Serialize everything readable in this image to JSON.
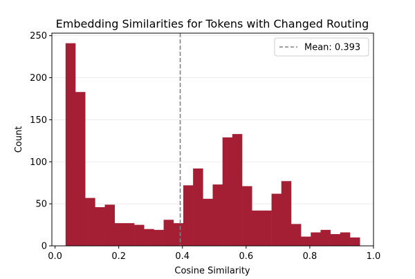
{
  "chart_data": {
    "type": "bar",
    "title": "Embedding Similarities for Tokens with Changed Routing",
    "xlabel": "Cosine Similarity",
    "ylabel": "Count",
    "xlim": [
      -0.01,
      1.0
    ],
    "ylim": [
      0,
      253
    ],
    "x_ticks": [
      0.0,
      0.2,
      0.4,
      0.6,
      0.8,
      1.0
    ],
    "x_tick_labels": [
      "0.0",
      "0.2",
      "0.4",
      "0.6",
      "0.8",
      "1.0"
    ],
    "y_ticks": [
      0,
      50,
      100,
      150,
      200,
      250
    ],
    "y_tick_labels": [
      "0",
      "50",
      "100",
      "150",
      "200",
      "250"
    ],
    "grid": "horizontal",
    "bar_color": "#a51f34",
    "bins": {
      "start": 0.033,
      "width": 0.0308,
      "counts": [
        241,
        183,
        57,
        46,
        49,
        27,
        27,
        25,
        20,
        19,
        31,
        27,
        72,
        92,
        56,
        73,
        129,
        133,
        71,
        42,
        42,
        62,
        77,
        26,
        11,
        16,
        19,
        14,
        16,
        10
      ]
    },
    "mean_line": {
      "value": 0.393,
      "color": "#808080",
      "style": "dashed",
      "label": "Mean: 0.393"
    },
    "legend_position": "top-right"
  }
}
